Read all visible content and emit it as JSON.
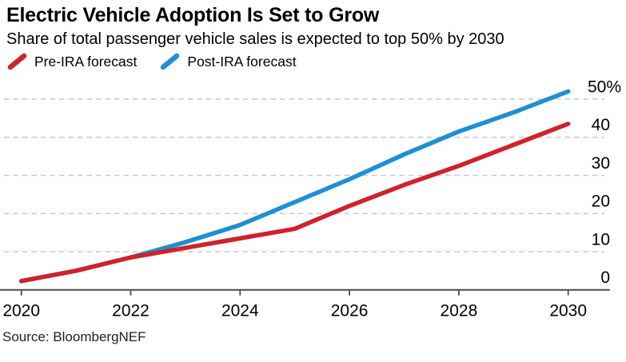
{
  "header": {
    "title": "Electric Vehicle Adoption Is Set to Grow",
    "subtitle": "Share of total passenger vehicle sales is expected to top 50% by 2030"
  },
  "legend": [
    {
      "label": "Pre-IRA forecast",
      "color": "#d0222a",
      "icon": "line-slash-icon"
    },
    {
      "label": "Post-IRA forecast",
      "color": "#1e8fd5",
      "icon": "line-slash-icon"
    }
  ],
  "source": "Source: BloombergNEF",
  "colors": {
    "pre_ira_red": "#d0222a",
    "post_ira_blue": "#1e8fd5",
    "gridline": "#c9c9c9",
    "axis": "#4a4a4a",
    "text": "#000000",
    "background": "#ffffff"
  },
  "chart_data": {
    "type": "line",
    "title": "Electric Vehicle Adoption Is Set to Grow",
    "subtitle": "Share of total passenger vehicle sales is expected to top 50% by 2030",
    "xlabel": "",
    "ylabel": "Share of total passenger vehicle sales (%)",
    "x": [
      2020,
      2021,
      2022,
      2023,
      2024,
      2025,
      2026,
      2027,
      2028,
      2029,
      2030
    ],
    "series": [
      {
        "name": "Pre-IRA forecast",
        "color": "#d0222a",
        "values": [
          2.3,
          5,
          8.5,
          11,
          13.5,
          16,
          22,
          27.5,
          32.5,
          38,
          43.5
        ]
      },
      {
        "name": "Post-IRA forecast",
        "color": "#1e8fd5",
        "values": [
          2.3,
          5,
          8.5,
          12.5,
          17,
          23,
          29,
          35.5,
          41.5,
          46.5,
          52
        ]
      }
    ],
    "ylim": [
      0,
      52
    ],
    "yticks": [
      0,
      10,
      20,
      30,
      40,
      50
    ],
    "ytick_labels": [
      "0",
      "10",
      "20",
      "30",
      "40",
      "50%"
    ],
    "xticks": [
      2020,
      2022,
      2024,
      2026,
      2028,
      2030
    ],
    "y_axis_side": "right",
    "grid": "horizontal-dashed",
    "legend_position": "top-left",
    "source": "Source: BloombergNEF"
  }
}
